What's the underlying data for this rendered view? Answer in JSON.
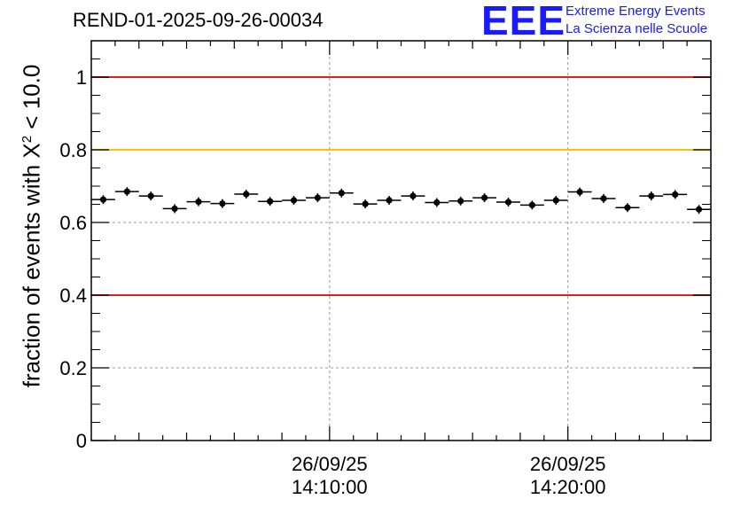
{
  "chart_data": {
    "type": "scatter",
    "title": "REND-01-2025-09-26-00034",
    "ylabel_prefix": "fraction of events with X",
    "ylabel_sup": "2",
    "ylabel_suffix": " < 10.0",
    "xlabel": "",
    "ylim": [
      0,
      1.1
    ],
    "yticks": [
      0,
      0.2,
      0.4,
      0.6,
      0.8,
      1
    ],
    "ytick_labels": [
      "0",
      "0.2",
      "0.4",
      "0.6",
      "0.8",
      "1"
    ],
    "xlim_minutes": [
      0,
      26
    ],
    "xticks_minutes": [
      10,
      20
    ],
    "xtick_labels": [
      {
        "date": "26/09/25",
        "time": "14:10:00"
      },
      {
        "date": "26/09/25",
        "time": "14:20:00"
      }
    ],
    "x_unit": "minutes after 14:00:00",
    "bin_width_minutes": 1,
    "grid": true,
    "reference_lines": [
      {
        "y": 1.0,
        "color": "#e0201a"
      },
      {
        "y": 0.8,
        "color": "#ffc000"
      },
      {
        "y": 0.4,
        "color": "#e0201a"
      }
    ],
    "series": [
      {
        "name": "fraction",
        "x": [
          0.5,
          1.5,
          2.5,
          3.5,
          4.5,
          5.5,
          6.5,
          7.5,
          8.5,
          9.5,
          10.5,
          11.5,
          12.5,
          13.5,
          14.5,
          15.5,
          16.5,
          17.5,
          18.5,
          19.5,
          20.5,
          21.5,
          22.5,
          23.5,
          24.5,
          25.5
        ],
        "values": [
          0.663,
          0.685,
          0.673,
          0.638,
          0.657,
          0.652,
          0.678,
          0.658,
          0.661,
          0.668,
          0.681,
          0.651,
          0.661,
          0.673,
          0.655,
          0.659,
          0.668,
          0.656,
          0.648,
          0.661,
          0.684,
          0.666,
          0.641,
          0.673,
          0.677,
          0.636
        ]
      }
    ]
  },
  "logo": {
    "mark": "EEE",
    "line1": "Extreme Energy Events",
    "line2": "La Scienza nelle Scuole",
    "color": "#1a1aff"
  }
}
